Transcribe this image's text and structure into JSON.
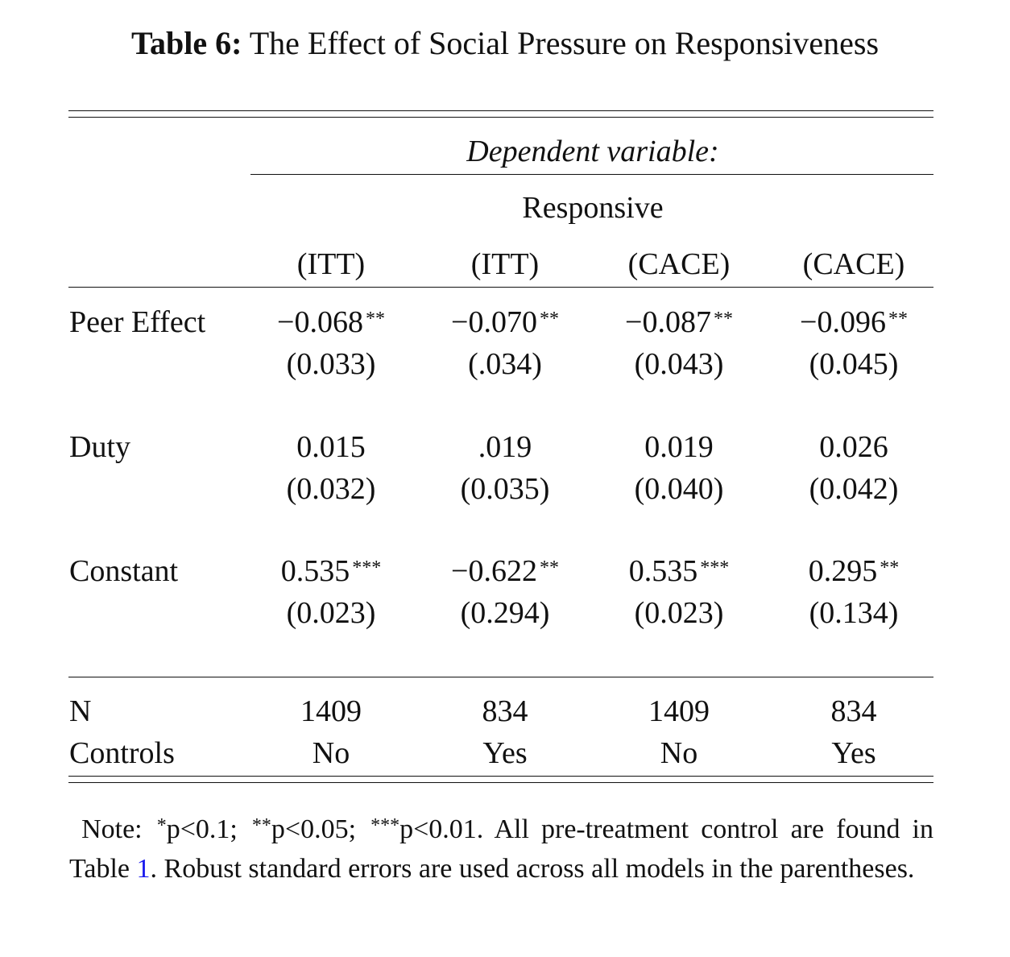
{
  "caption": {
    "label": "Table 6:",
    "text": "The Effect of Social Pressure on Responsiveness"
  },
  "header": {
    "dependent_variable": "Dependent variable:",
    "dv_name": "Responsive",
    "models": [
      "(ITT)",
      "(ITT)",
      "(CACE)",
      "(CACE)"
    ]
  },
  "rows": [
    {
      "name": "Peer Effect",
      "coef": [
        "−0.068",
        "−0.070",
        "−0.087",
        "−0.096"
      ],
      "stars": [
        "**",
        "**",
        "**",
        "**"
      ],
      "se": [
        "(0.033)",
        "(.034)",
        "(0.043)",
        "(0.045)"
      ]
    },
    {
      "name": "Duty",
      "coef": [
        "0.015",
        ".019",
        "0.019",
        "0.026"
      ],
      "stars": [
        "",
        "",
        "",
        ""
      ],
      "se": [
        "(0.032)",
        "(0.035)",
        "(0.040)",
        "(0.042)"
      ]
    },
    {
      "name": "Constant",
      "coef": [
        "0.535",
        "−0.622",
        "0.535",
        "0.295"
      ],
      "stars": [
        "***",
        "**",
        "***",
        "**"
      ],
      "se": [
        "(0.023)",
        "(0.294)",
        "(0.023)",
        "(0.134)"
      ]
    }
  ],
  "stats": [
    {
      "name": "N",
      "values": [
        "1409",
        "834",
        "1409",
        "834"
      ]
    },
    {
      "name": "Controls",
      "values": [
        "No",
        "Yes",
        "No",
        "Yes"
      ]
    }
  ],
  "note": {
    "prefix": "Note: ",
    "star1": "*",
    "p1": "p<0.1; ",
    "star2": "**",
    "p2": "p<0.05; ",
    "star3": "***",
    "p3": "p<0.01. ",
    "text_before_ref": "All pre-treatment control are found in Table ",
    "ref": "1",
    "text_after_ref": ". Robust standard errors are used across all models in the parentheses."
  }
}
